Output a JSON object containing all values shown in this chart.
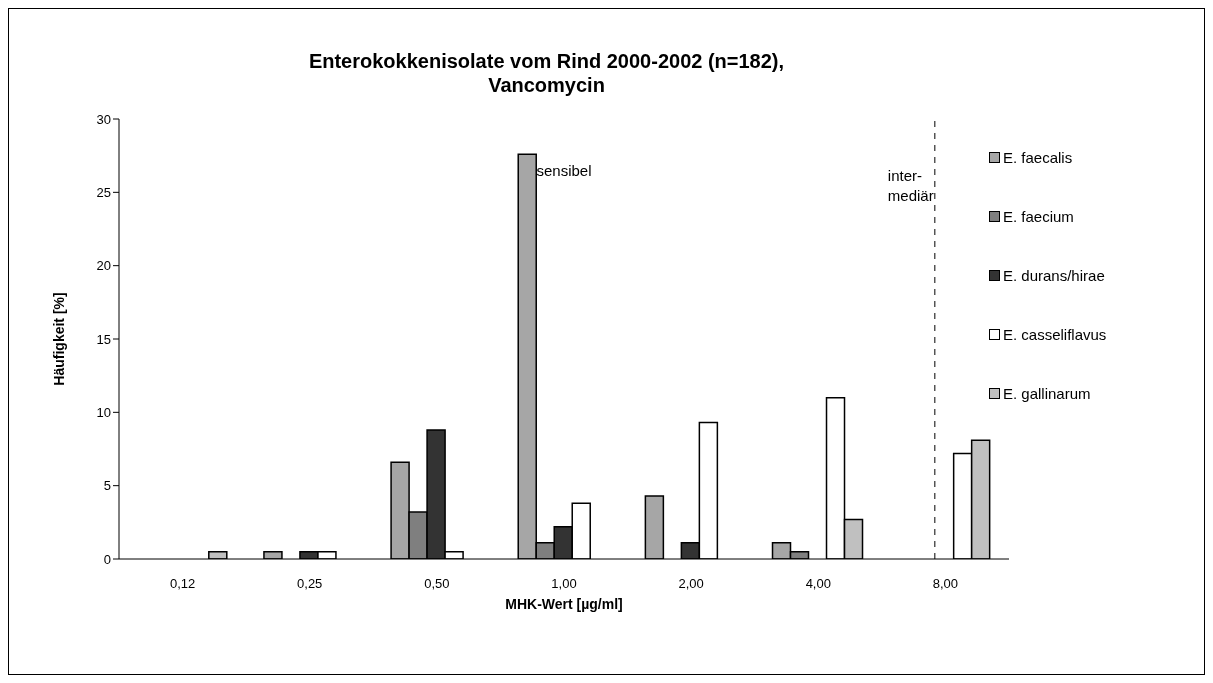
{
  "chart_data": {
    "type": "bar",
    "title": "Enterokokkenisolate vom Rind 2000-2002 (n=182),\nVancomycin",
    "xlabel": "MHK-Wert [µg/ml]",
    "ylabel": "Häufigkeit [%]",
    "categories": [
      "0,12",
      "0,25",
      "0,50",
      "1,00",
      "2,00",
      "4,00",
      "8,00"
    ],
    "series": [
      {
        "name": "E. faecalis",
        "color": "#a6a6a6",
        "values": [
          null,
          0.5,
          6.6,
          27.6,
          4.3,
          1.1,
          null
        ]
      },
      {
        "name": "E. faecium",
        "color": "#7f7f7f",
        "values": [
          null,
          null,
          3.2,
          1.1,
          null,
          0.5,
          null
        ]
      },
      {
        "name": "E. durans/hirae",
        "color": "#333333",
        "values": [
          null,
          0.5,
          8.8,
          2.2,
          1.1,
          null,
          null
        ]
      },
      {
        "name": "E. casseliflavus",
        "color": "#ffffff",
        "values": [
          null,
          0.5,
          0.5,
          3.8,
          9.3,
          11.0,
          7.2
        ]
      },
      {
        "name": "E. gallinarum",
        "color": "#c0c0c0",
        "values": [
          0.5,
          null,
          null,
          null,
          null,
          2.7,
          8.1
        ]
      }
    ],
    "ylim": [
      0,
      30
    ],
    "yticks": [
      0,
      5,
      10,
      15,
      20,
      25,
      30
    ],
    "legend": "right",
    "ref_lines": [
      {
        "axis": "x",
        "value": "8,00",
        "line_style": "dashed",
        "color": "#000000"
      }
    ],
    "annotations": [
      "sensibel",
      "inter-\nmediär"
    ]
  }
}
